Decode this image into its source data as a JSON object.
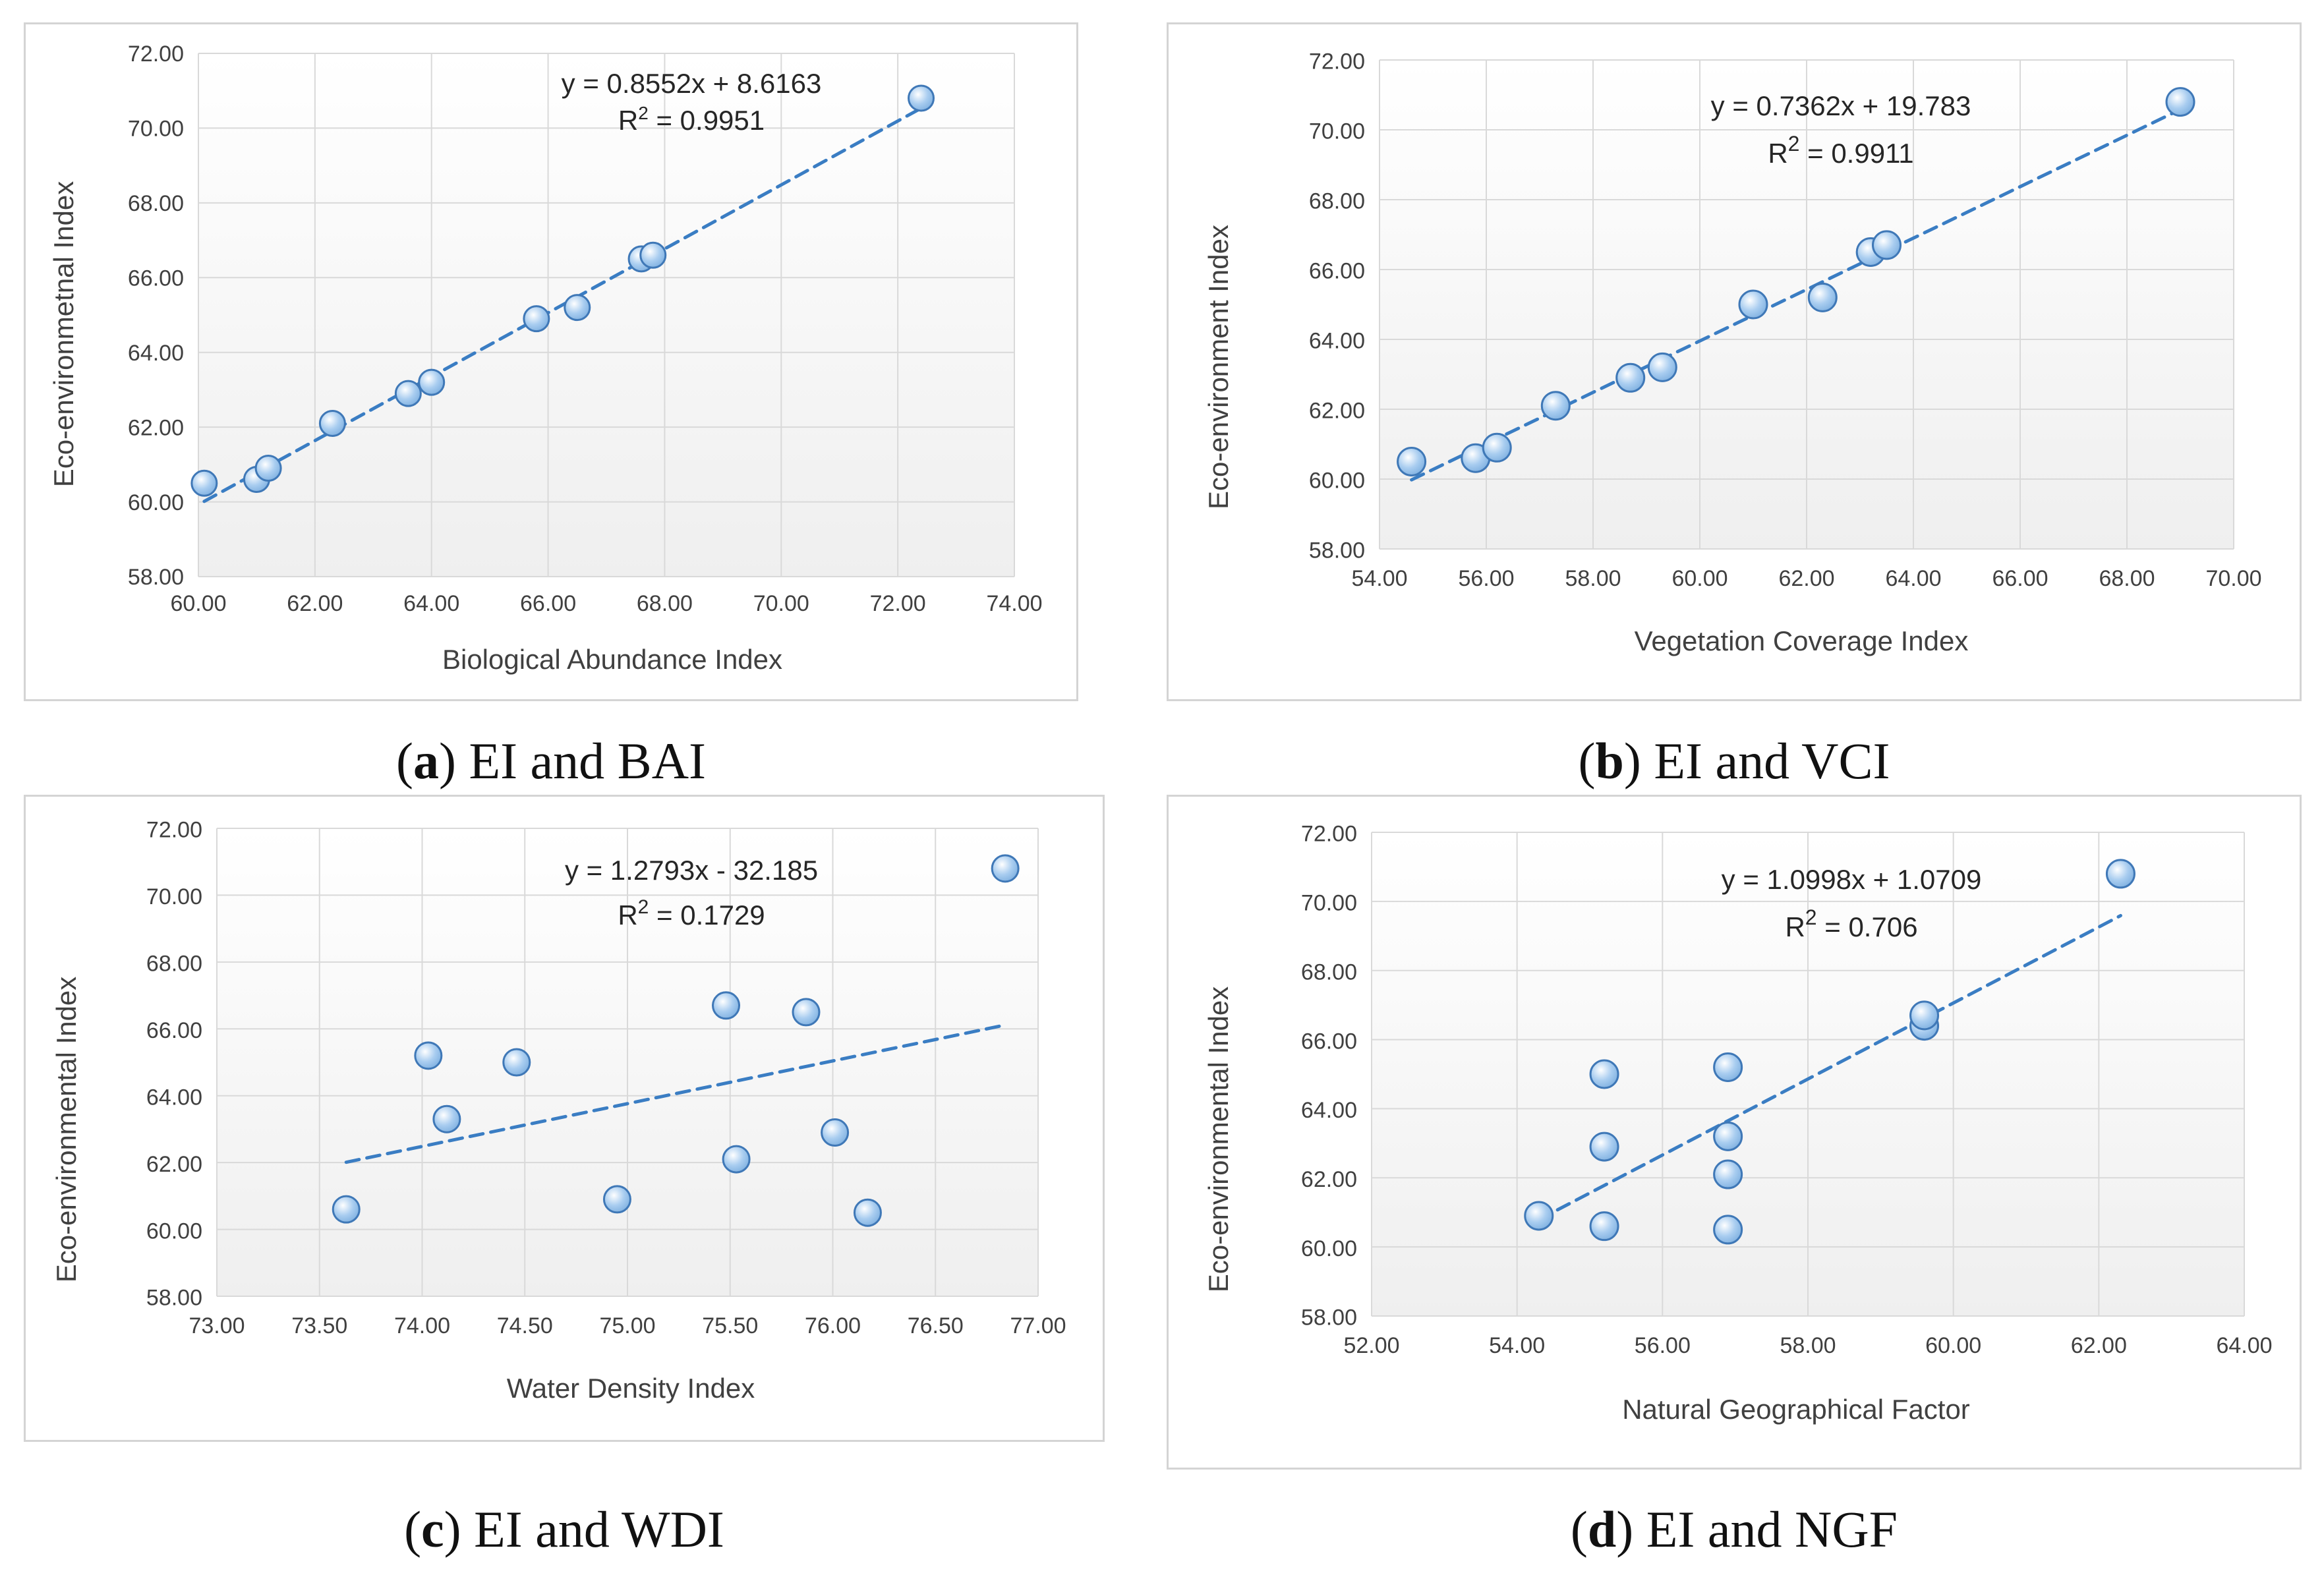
{
  "colors": {
    "marker_fill": "#a9cdf0",
    "marker_stroke": "#3f78b7",
    "trend": "#3a7dc3",
    "grid": "#d9d9d9",
    "plot_top": "#ffffff",
    "plot_bottom": "#efefef"
  },
  "chart_data": [
    {
      "id": "a",
      "type": "scatter",
      "caption": {
        "letter": "a",
        "text": "EI and BAI"
      },
      "xlabel": "Biological Abundance Index",
      "ylabel": "Eco-environmetnal Index",
      "xlim": [
        60,
        74
      ],
      "xstep": 2,
      "ylim": [
        58,
        72
      ],
      "ystep": 2,
      "xticks": [
        "60.00",
        "62.00",
        "64.00",
        "66.00",
        "68.00",
        "70.00",
        "72.00",
        "74.00"
      ],
      "yticks": [
        "58.00",
        "60.00",
        "62.00",
        "64.00",
        "66.00",
        "68.00",
        "70.00",
        "72.00"
      ],
      "x": [
        60.1,
        61.0,
        61.2,
        62.3,
        63.6,
        64.0,
        65.8,
        66.5,
        67.6,
        67.8,
        72.4
      ],
      "y": [
        60.5,
        60.6,
        60.9,
        62.1,
        62.9,
        63.2,
        64.9,
        65.2,
        66.5,
        66.6,
        70.8
      ],
      "trendline": {
        "slope": 0.8552,
        "intercept": 8.6163,
        "xrange": [
          60.1,
          72.4
        ]
      },
      "equation": "y = 0.8552x + 8.6163",
      "r2_label": "R",
      "r2_sup": "2",
      "r2_value": " = 0.9951",
      "legend": "none"
    },
    {
      "id": "b",
      "type": "scatter",
      "caption": {
        "letter": "b",
        "text": "EI and VCI"
      },
      "xlabel": "Vegetation Coverage Index",
      "ylabel": "Eco-environment Index",
      "xlim": [
        54,
        70
      ],
      "xstep": 2,
      "ylim": [
        58,
        72
      ],
      "ystep": 2,
      "xticks": [
        "54.00",
        "56.00",
        "58.00",
        "60.00",
        "62.00",
        "64.00",
        "66.00",
        "68.00",
        "70.00"
      ],
      "yticks": [
        "58.00",
        "60.00",
        "62.00",
        "64.00",
        "66.00",
        "68.00",
        "70.00",
        "72.00"
      ],
      "x": [
        54.6,
        55.8,
        56.2,
        57.3,
        58.7,
        59.3,
        61.0,
        62.3,
        63.2,
        63.5,
        69.0
      ],
      "y": [
        60.5,
        60.6,
        60.9,
        62.1,
        62.9,
        63.2,
        65.0,
        65.2,
        66.5,
        66.7,
        70.8
      ],
      "trendline": {
        "slope": 0.7362,
        "intercept": 19.783,
        "xrange": [
          54.6,
          69.0
        ]
      },
      "equation": "y = 0.7362x + 19.783",
      "r2_label": "R",
      "r2_sup": "2",
      "r2_value": " = 0.9911",
      "legend": "none"
    },
    {
      "id": "c",
      "type": "scatter",
      "caption": {
        "letter": "c",
        "text": "EI and WDI"
      },
      "xlabel": "Water Density Index",
      "ylabel": "Eco-environmental Index",
      "xlim": [
        73,
        77
      ],
      "xstep": 0.5,
      "ylim": [
        58,
        72
      ],
      "ystep": 2,
      "xticks": [
        "73.00",
        "73.50",
        "74.00",
        "74.50",
        "75.00",
        "75.50",
        "76.00",
        "76.50",
        "77.00"
      ],
      "yticks": [
        "58.00",
        "60.00",
        "62.00",
        "64.00",
        "66.00",
        "68.00",
        "70.00",
        "72.00"
      ],
      "x": [
        73.63,
        74.03,
        74.12,
        74.46,
        74.95,
        75.48,
        75.53,
        75.87,
        76.01,
        76.17,
        76.84
      ],
      "y": [
        60.6,
        65.2,
        63.3,
        65.0,
        60.9,
        66.7,
        62.1,
        66.5,
        62.9,
        60.5,
        70.8
      ],
      "trendline": {
        "slope": 1.2793,
        "intercept": -32.185,
        "xrange": [
          73.63,
          76.84
        ]
      },
      "equation": "y = 1.2793x - 32.185",
      "r2_label": "R",
      "r2_sup": "2",
      "r2_value": " = 0.1729",
      "legend": "none"
    },
    {
      "id": "d",
      "type": "scatter",
      "caption": {
        "letter": "d",
        "text": "EI and NGF"
      },
      "xlabel": "Natural Geographical Factor",
      "ylabel": "Eco-environmental Index",
      "xlim": [
        52,
        64
      ],
      "xstep": 2,
      "ylim": [
        58,
        72
      ],
      "ystep": 2,
      "xticks": [
        "52.00",
        "54.00",
        "56.00",
        "58.00",
        "60.00",
        "62.00",
        "64.00"
      ],
      "yticks": [
        "58.00",
        "60.00",
        "62.00",
        "64.00",
        "66.00",
        "68.00",
        "70.00",
        "72.00"
      ],
      "x": [
        54.3,
        55.2,
        55.2,
        55.2,
        56.9,
        56.9,
        56.9,
        56.9,
        59.6,
        59.6,
        62.3
      ],
      "y": [
        60.9,
        60.6,
        62.9,
        65.0,
        60.5,
        62.1,
        63.2,
        65.2,
        66.4,
        66.7,
        70.8
      ],
      "trendline": {
        "slope": 1.0998,
        "intercept": 1.0709,
        "xrange": [
          54.3,
          62.3
        ]
      },
      "equation": "y = 1.0998x + 1.0709",
      "r2_label": "R",
      "r2_sup": "2",
      "r2_value": " = 0.706",
      "legend": "none"
    }
  ]
}
